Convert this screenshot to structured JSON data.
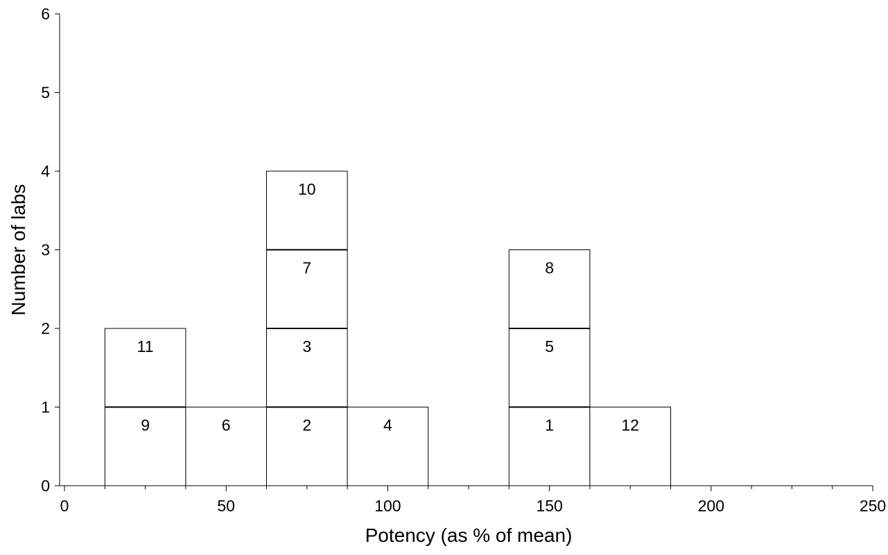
{
  "chart_data": {
    "type": "bar",
    "xlabel": "Potency (as % of mean)",
    "ylabel": "Number of labs",
    "xlim": [
      0,
      250
    ],
    "ylim": [
      0,
      6
    ],
    "x_ticks": [
      0,
      50,
      100,
      150,
      200,
      250
    ],
    "x_tick_labels": [
      "0",
      "50",
      "100",
      "150",
      "200",
      "250"
    ],
    "x_minor_tick_step": 12.5,
    "y_ticks": [
      0,
      1,
      2,
      3,
      4,
      5,
      6
    ],
    "y_tick_labels": [
      "0",
      "1",
      "2",
      "3",
      "4",
      "5",
      "6"
    ],
    "bin_width": 25,
    "bins": [
      {
        "center": 25,
        "labs": [
          "9",
          "11"
        ]
      },
      {
        "center": 50,
        "labs": [
          "6"
        ]
      },
      {
        "center": 75,
        "labs": [
          "2",
          "3",
          "7",
          "10"
        ]
      },
      {
        "center": 100,
        "labs": [
          "4"
        ]
      },
      {
        "center": 150,
        "labs": [
          "1",
          "5",
          "8"
        ]
      },
      {
        "center": 175,
        "labs": [
          "12"
        ]
      }
    ],
    "grid": false,
    "legend": "none"
  }
}
